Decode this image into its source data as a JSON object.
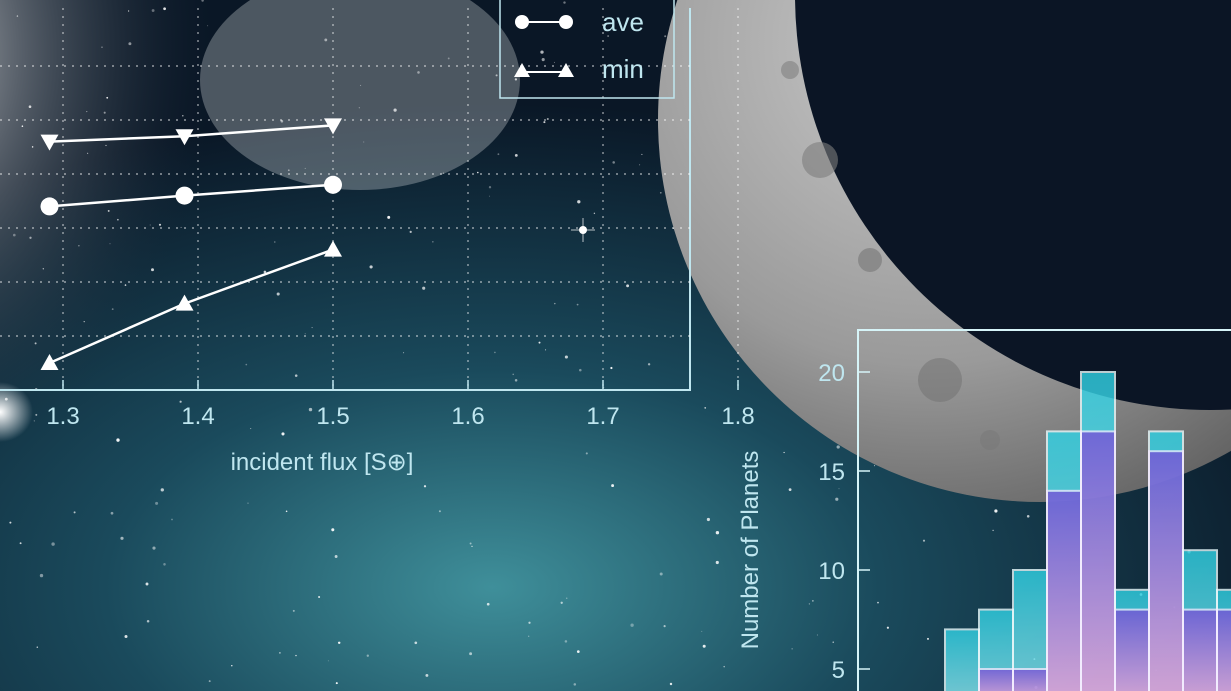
{
  "chart_data": [
    {
      "type": "line",
      "xlabel": "incident flux [S⊕]",
      "x_tick_labels": [
        "1.3",
        "1.4",
        "1.5",
        "1.6",
        "1.7",
        "1.8"
      ],
      "grid": true,
      "legend": {
        "placement": "top-right",
        "entries": [
          "ave",
          "min"
        ]
      },
      "series": [
        {
          "marker": "triangle-down",
          "x": [
            1.29,
            1.39,
            1.5
          ],
          "y": [
            0.86,
            0.87,
            0.89
          ]
        },
        {
          "name": "ave",
          "marker": "circle",
          "x": [
            1.29,
            1.39,
            1.5
          ],
          "y": [
            0.74,
            0.76,
            0.78
          ]
        },
        {
          "name": "min",
          "marker": "triangle-up",
          "x": [
            1.29,
            1.39,
            1.5
          ],
          "y": [
            0.45,
            0.56,
            0.66
          ]
        }
      ]
    },
    {
      "type": "bar",
      "ylabel": "Number of Planets",
      "y_tick_labels": [
        "5",
        "10",
        "15",
        "20"
      ],
      "stacked": true,
      "series": [
        {
          "values": [
            7,
            8,
            10,
            17,
            20,
            9,
            17,
            11,
            9
          ]
        },
        {
          "values": [
            0,
            5,
            5,
            14,
            17,
            8,
            16,
            8,
            8
          ]
        }
      ]
    }
  ]
}
